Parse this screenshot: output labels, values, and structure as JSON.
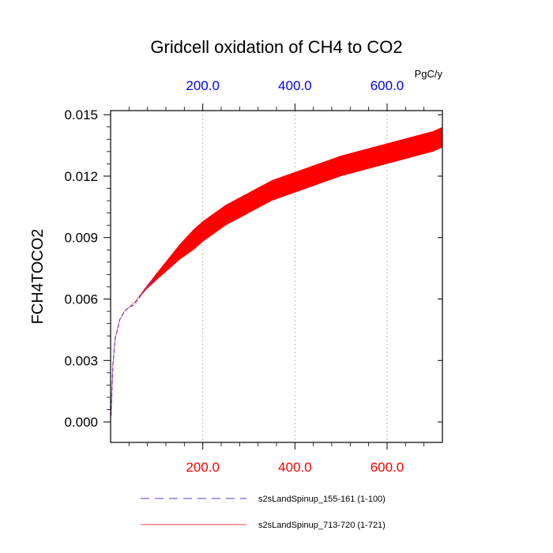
{
  "chart_data": {
    "type": "line",
    "title": "Gridcell oxidation of CH4 to CO2",
    "ylabel": "FCH4TOCO2",
    "top_axis_units": "PgC/y",
    "xlim": [
      0,
      720
    ],
    "ylim": [
      -0.001,
      0.0152
    ],
    "y_ticks": [
      0.0,
      0.003,
      0.006,
      0.009,
      0.012,
      0.015
    ],
    "y_tick_labels": [
      "0.000",
      "0.003",
      "0.006",
      "0.009",
      "0.012",
      "0.015"
    ],
    "bottom_ticks": [
      200,
      400,
      600
    ],
    "bottom_tick_labels": [
      "200.0",
      "400.0",
      "600.0"
    ],
    "top_ticks": [
      200,
      400,
      600
    ],
    "top_tick_labels": [
      "200.0",
      "400.0",
      "600.0"
    ],
    "grid": "vertical dotted at major x ticks",
    "series": [
      {
        "name": "s2sLandSpinup_713-720 (1-721)",
        "color": "#ff0000",
        "style": "solid",
        "x": [
          1,
          5,
          10,
          20,
          30,
          50,
          80,
          100,
          150,
          200,
          250,
          300,
          350,
          400,
          450,
          500,
          550,
          600,
          650,
          700,
          720
        ],
        "y": [
          0.0003,
          0.0028,
          0.0041,
          0.005,
          0.0054,
          0.0058,
          0.0066,
          0.0071,
          0.0083,
          0.0093,
          0.0101,
          0.0107,
          0.0113,
          0.0117,
          0.0121,
          0.0125,
          0.0128,
          0.0131,
          0.0134,
          0.0137,
          0.0139
        ],
        "seasonal_amplitude": 0.0005
      },
      {
        "name": "s2sLandSpinup_155-161 (1-100)",
        "color": "#6633cc",
        "style": "dashed",
        "x": [
          1,
          5,
          10,
          15,
          20,
          30,
          40,
          50,
          60,
          70,
          80,
          90,
          100
        ],
        "y": [
          0.0003,
          0.0028,
          0.0041,
          0.0045,
          0.005,
          0.0054,
          0.0056,
          0.0057,
          0.006,
          0.0063,
          0.0066,
          0.0069,
          0.0071
        ]
      }
    ],
    "legend": {
      "placement": "bottom",
      "entries": [
        "s2sLandSpinup_155-161 (1-100)",
        "s2sLandSpinup_713-720 (1-721)"
      ]
    },
    "colors": {
      "top_tick_label": "#0000ff",
      "bottom_tick_label": "#ff0000",
      "axis": "#000000",
      "grid": "#aaaaaa"
    }
  }
}
